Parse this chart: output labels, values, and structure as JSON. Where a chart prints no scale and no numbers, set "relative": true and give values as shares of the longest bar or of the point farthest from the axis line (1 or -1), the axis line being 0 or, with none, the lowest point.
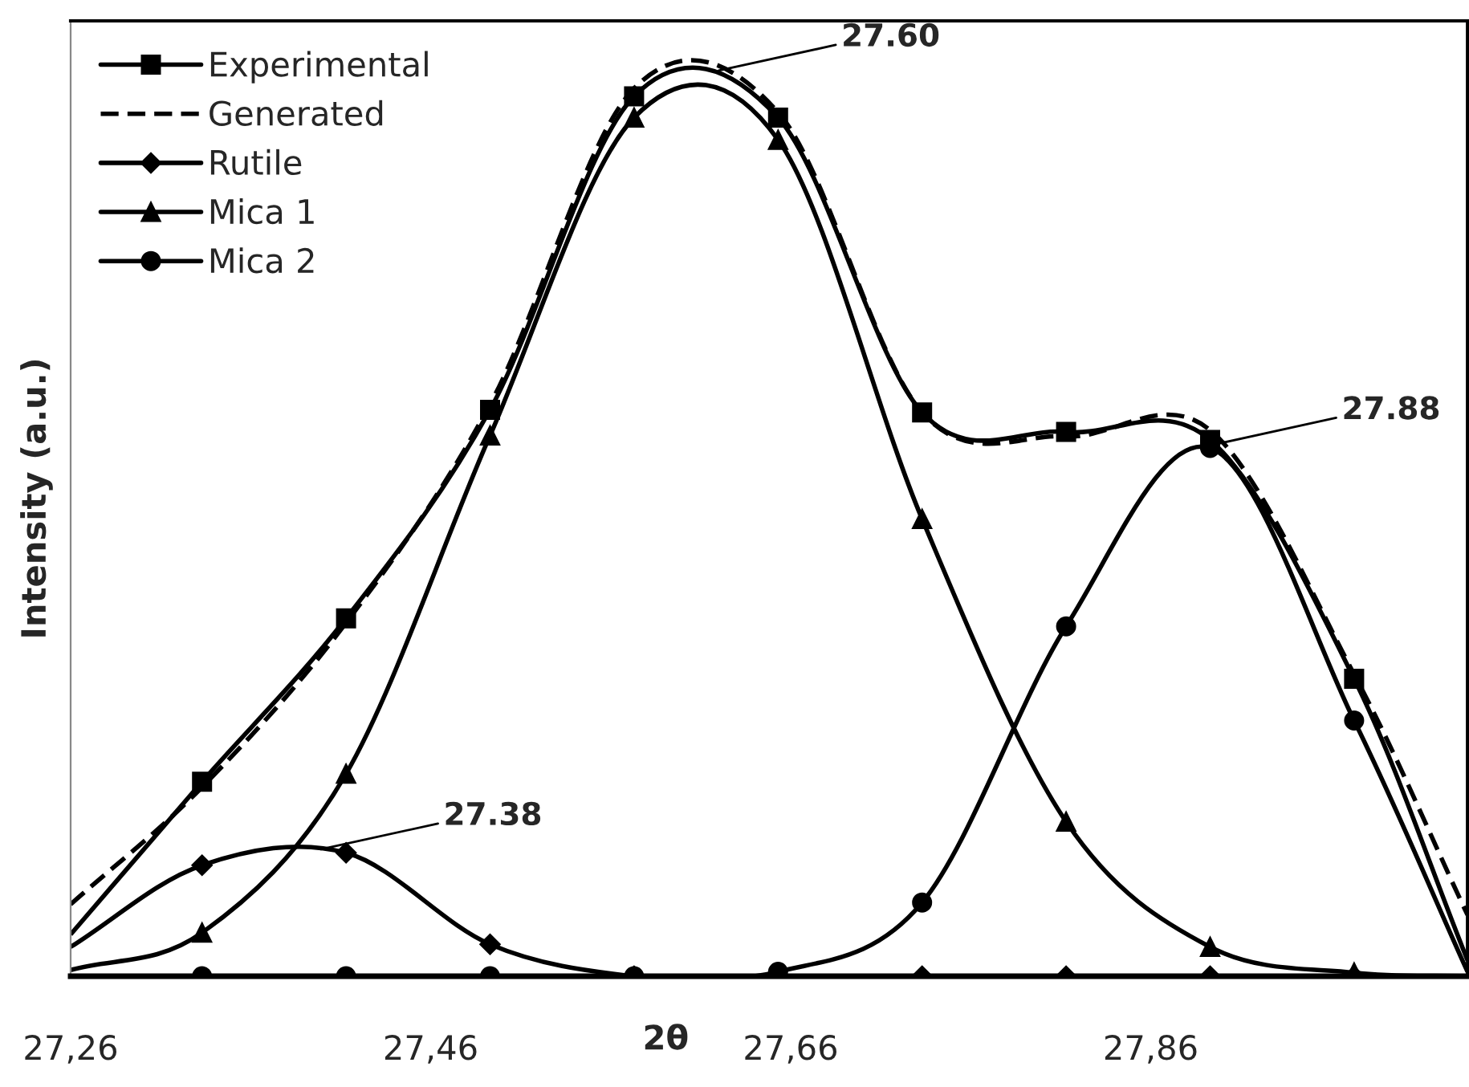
{
  "chart_data": {
    "type": "line",
    "relative": true,
    "xlabel": "2θ",
    "ylabel": "Intensity (a.u.)",
    "x": [
      27.26,
      27.333,
      27.413,
      27.493,
      27.573,
      27.653,
      27.733,
      27.813,
      27.893,
      27.973,
      28.036
    ],
    "xlim": [
      27.26,
      28.036
    ],
    "xticks": [
      {
        "value": 27.26,
        "label": "27,26"
      },
      {
        "value": 27.46,
        "label": "27,46"
      },
      {
        "value": 27.66,
        "label": "27,66"
      },
      {
        "value": 27.86,
        "label": "27,86"
      }
    ],
    "grid": false,
    "legend": "top left",
    "series": [
      {
        "name": "Experimental",
        "color": "#000000",
        "marker": "square",
        "line_style": "solid",
        "values": [
          0.047,
          0.219,
          0.403,
          0.638,
          0.991,
          0.967,
          0.635,
          0.613,
          0.604,
          0.335,
          0.018
        ]
      },
      {
        "name": "Generated",
        "color": "#000000",
        "marker": "none",
        "line_style": "dashed",
        "values": [
          0.081,
          0.213,
          0.398,
          0.644,
          1,
          0.973,
          0.635,
          0.608,
          0.615,
          0.34,
          0.069
        ]
      },
      {
        "name": "Rutile",
        "color": "#000000",
        "marker": "diamond",
        "line_style": "solid",
        "values": [
          0.033,
          0.125,
          0.139,
          0.036,
          0,
          0,
          0,
          0,
          0,
          0,
          0
        ]
      },
      {
        "name": "Mica 1",
        "color": "#000000",
        "marker": "triangle",
        "line_style": "solid",
        "values": [
          0.007,
          0.049,
          0.228,
          0.609,
          0.967,
          0.942,
          0.515,
          0.174,
          0.033,
          0.004,
          0
        ]
      },
      {
        "name": "Mica 2",
        "color": "#000000",
        "marker": "circle",
        "line_style": "solid",
        "values": [
          0,
          0,
          0,
          0,
          0,
          0.005,
          0.083,
          0.394,
          0.595,
          0.288,
          0.005
        ]
      }
    ],
    "annotations": [
      {
        "text": "27.60",
        "x": 27.62,
        "y": 1.02
      },
      {
        "text": "27.88",
        "x": 27.898,
        "y": 0.6
      },
      {
        "text": "27.38",
        "x": 27.399,
        "y": 0.143
      }
    ]
  }
}
